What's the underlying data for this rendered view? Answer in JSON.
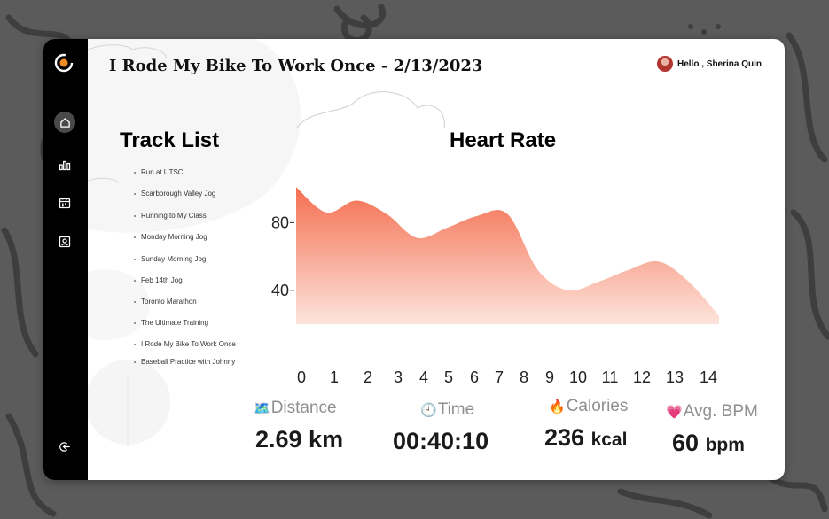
{
  "header": {
    "title": "I Rode My Bike To Work Once - 2/13/2023",
    "greeting": "Hello , Sherina Quin"
  },
  "sidebar": {
    "items": [
      {
        "icon": "home-icon",
        "active": true
      },
      {
        "icon": "bar-chart-icon",
        "active": false
      },
      {
        "icon": "calendar-icon",
        "active": false
      },
      {
        "icon": "contact-card-icon",
        "active": false
      }
    ],
    "logout_icon": "logout-icon"
  },
  "track_list": {
    "heading": "Track List",
    "items": [
      "Run at UTSC",
      "Scarborough Valley Jog",
      "Running to My Class",
      "Monday Morning Jog",
      "Sunday Morning Jog",
      "Feb 14th Jog",
      "Toronto Marathon",
      "The Ultimate Training",
      "I Rode My Bike To Work Once",
      "Baseball Practice with Johnny"
    ]
  },
  "chart_data": {
    "type": "area",
    "title": "Heart Rate",
    "xlabel": "",
    "ylabel": "",
    "x": [
      0,
      1,
      2,
      3,
      4,
      5,
      6,
      7,
      8,
      9,
      10,
      11,
      12,
      13,
      14
    ],
    "x_ticks": [
      "0",
      "1",
      "2",
      "3",
      "4",
      "5",
      "6",
      "7",
      "8",
      "9",
      "10",
      "11",
      "12",
      "13",
      "14"
    ],
    "y_ticks": [
      "80",
      "40"
    ],
    "y_tick_values": [
      80,
      40
    ],
    "series": [
      {
        "values": [
          101,
          86,
          93,
          85,
          71,
          77,
          84,
          85,
          52,
          40,
          45,
          52,
          57,
          45,
          25
        ]
      }
    ],
    "xlim": [
      0,
      14
    ],
    "ylim": [
      20,
      110
    ],
    "grid": false,
    "colors": {
      "fill_top": "#f46f51",
      "fill_bottom": "#fbd9cf"
    }
  },
  "stats": {
    "distance": {
      "icon": "map-icon",
      "label": "Distance",
      "value": "2.69 km"
    },
    "time": {
      "icon": "clock-icon",
      "label": "Time",
      "value": "00:40:10"
    },
    "calories": {
      "icon": "fire-icon",
      "label": "Calories",
      "value": "236",
      "unit": "kcal"
    },
    "bpm": {
      "icon": "heart-icon",
      "label": "Avg. BPM",
      "value": "60",
      "unit": "bpm"
    }
  }
}
